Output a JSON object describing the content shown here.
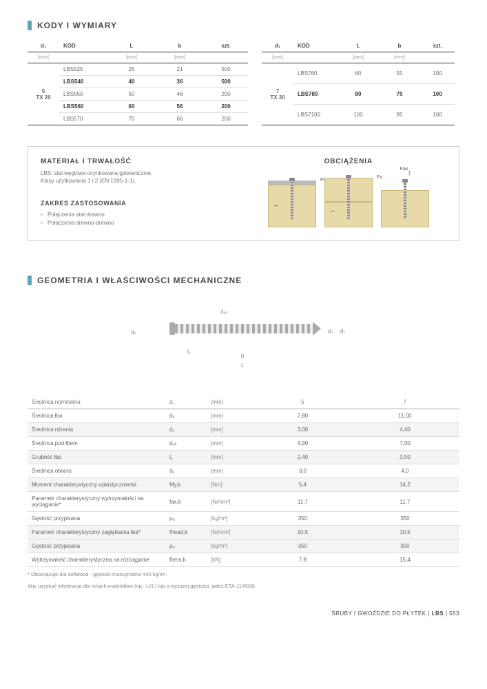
{
  "section1": {
    "title": "KODY I WYMIARY"
  },
  "headers": {
    "d1": "d₁",
    "kod": "KOD",
    "L": "L",
    "b": "b",
    "szt": "szt.",
    "unit_mm": "[mm]"
  },
  "table_left": {
    "rowspan_label": "5\nTX 20",
    "rows": [
      {
        "kod": "LBS525",
        "L": "25",
        "b": "21",
        "szt": "500",
        "bold": false
      },
      {
        "kod": "LBS540",
        "L": "40",
        "b": "36",
        "szt": "500",
        "bold": true
      },
      {
        "kod": "LBS550",
        "L": "50",
        "b": "46",
        "szt": "200",
        "bold": false
      },
      {
        "kod": "LBS560",
        "L": "60",
        "b": "56",
        "szt": "200",
        "bold": true
      },
      {
        "kod": "LBS570",
        "L": "70",
        "b": "66",
        "szt": "200",
        "bold": false
      }
    ]
  },
  "table_right": {
    "rowspan_label": "7\nTX 30",
    "rows": [
      {
        "kod": "LBS760",
        "L": "60",
        "b": "55",
        "szt": "100",
        "bold": false
      },
      {
        "kod": "LBS780",
        "L": "80",
        "b": "75",
        "szt": "100",
        "bold": true
      },
      {
        "kod": "LBS7100",
        "L": "100",
        "b": "95",
        "szt": "100",
        "bold": false
      }
    ]
  },
  "info": {
    "h1": "MATERIAŁ I TRWAŁOŚĆ",
    "t1": "LBS: stal węglowa ocynkowana galwanicznie.",
    "t2": "Klasy użytkowania 1 i 2 (EN 1995-1-1).",
    "h2": "ZAKRES ZASTOSOWANIA",
    "li1": "Połączenia stal-drewno",
    "li2": "Połączenia drewno-drewno",
    "h3": "OBCIĄŻENIA",
    "fv": "Fv",
    "fax": "Fax"
  },
  "section2": {
    "title": "GEOMETRIA I WŁAŚCIWOŚCI MECHANICZNE"
  },
  "geom_labels": {
    "dk": "dₖ",
    "d1": "d₁",
    "d2": "d₂",
    "t1": "t₁",
    "b": "b",
    "L": "L",
    "duk": "dᵤₖ"
  },
  "prop_header": {
    "name": "Średnica nominalna",
    "sym": "d₁",
    "unit": "[mm]",
    "v1": "5",
    "v2": "7"
  },
  "prop_rows": [
    {
      "name": "Średnica łba",
      "sym": "dₖ",
      "unit": "[mm]",
      "v1": "7,80",
      "v2": "11,00",
      "grey": false
    },
    {
      "name": "Średnica rdzenia",
      "sym": "d₂",
      "unit": "[mm]",
      "v1": "3,00",
      "v2": "4,40",
      "grey": true
    },
    {
      "name": "Średnica pod łbem",
      "sym": "dᵤₖ",
      "unit": "[mm]",
      "v1": "4,90",
      "v2": "7,00",
      "grey": false
    },
    {
      "name": "Grubość łba",
      "sym": "t₁",
      "unit": "[mm]",
      "v1": "2,40",
      "v2": "3,50",
      "grey": true
    },
    {
      "name": "Średnica otworu",
      "sym": "dᵥ",
      "unit": "[mm]",
      "v1": "3,0",
      "v2": "4,0",
      "grey": false
    },
    {
      "name": "Moment charakterystyczny uplastycznienia",
      "sym": "My,k",
      "unit": "[Nm]",
      "v1": "5,4",
      "v2": "14,2",
      "grey": true
    },
    {
      "name": "Parametr charakterystyczny wytrzymałości na wyciąganie*",
      "sym": "fax,k",
      "unit": "[N/mm²]",
      "v1": "11,7",
      "v2": "11,7",
      "grey": false
    },
    {
      "name": "Gęstość przypisana",
      "sym": "ρₐ",
      "unit": "[kg/m³]",
      "v1": "350",
      "v2": "350",
      "grey": false
    },
    {
      "name": "Parametr charakterystyczny zagłębiania łba*",
      "sym": "fhead,k",
      "unit": "[N/mm²]",
      "v1": "10,5",
      "v2": "10,5",
      "grey": true
    },
    {
      "name": "Gęstość przypisana",
      "sym": "ρₐ",
      "unit": "[kg/m³]",
      "v1": "350",
      "v2": "350",
      "grey": true
    },
    {
      "name": "Wytrzymałość charakterystyczna na rozciąganie",
      "sym": "ftens,k",
      "unit": "[kN]",
      "v1": "7,9",
      "v2": "15,4",
      "grey": false
    }
  ],
  "footnotes": {
    "f1": "*  Obowiązuje dla softwood - gęstość maksymalna 440 kg/m³.",
    "f2": "Aby uzyskać informacje dla innych materiałów (np.: LVL) lub o wyższej gęstości, patrz ETA-11/0030."
  },
  "footer": {
    "txt": "ŚRUBY I GWOŹDZIE DO PŁYTEK  |  ",
    "code": "LBS",
    "page": "  |  553"
  }
}
